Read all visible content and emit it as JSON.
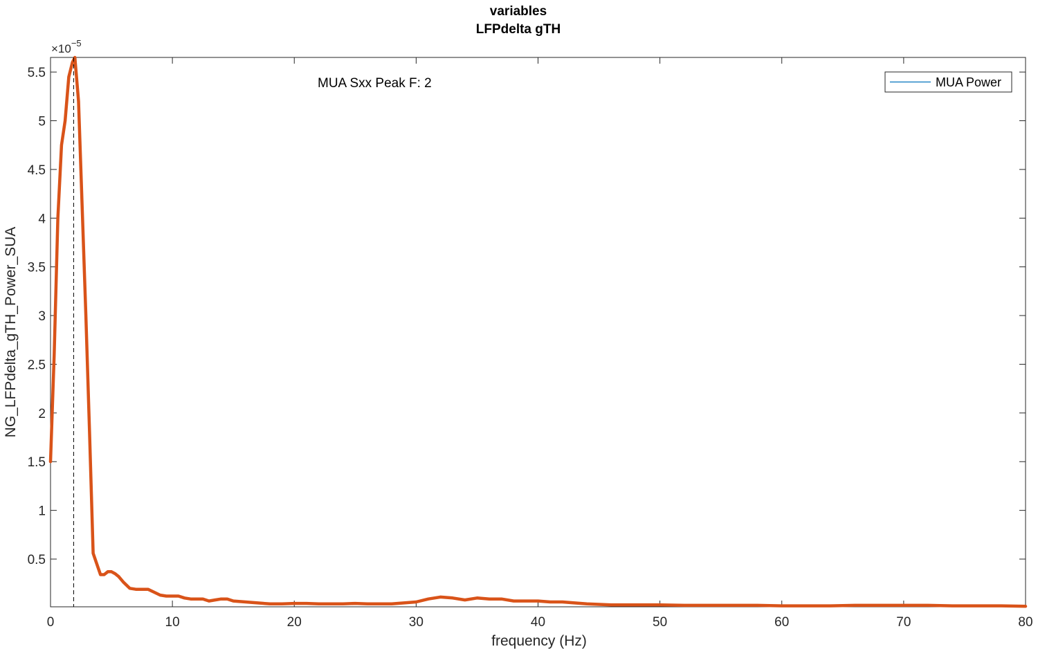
{
  "chart_data": {
    "type": "line",
    "title": [
      "variables",
      "LFPdelta gTH"
    ],
    "xlabel": "frequency (Hz)",
    "ylabel": "NG_LFPdelta_gTH_Power_SUA",
    "exponent_label": "×10",
    "exponent_power": "−5",
    "xlim": [
      0,
      80
    ],
    "ylim": [
      0.01,
      5.65
    ],
    "xticks": [
      0,
      10,
      20,
      30,
      40,
      50,
      60,
      70,
      80
    ],
    "xtick_labels": [
      "0",
      "10",
      "20",
      "30",
      "40",
      "50",
      "60",
      "70",
      "80"
    ],
    "yticks": [
      0.5,
      1,
      1.5,
      2,
      2.5,
      3,
      3.5,
      4,
      4.5,
      5,
      5.5
    ],
    "ytick_labels": [
      "0.5",
      "1",
      "1.5",
      "2",
      "2.5",
      "3",
      "3.5",
      "4",
      "4.5",
      "5",
      "5.5"
    ],
    "grid": false,
    "legend": {
      "position": "top-right",
      "entries": [
        "MUA Power"
      ]
    },
    "annotation": "MUA Sxx Peak F: 2",
    "peak_line_x": 1.9,
    "colors": {
      "visible_series": "#D95319",
      "legend_series": "#0072BD",
      "axes": "#262626"
    },
    "series": [
      {
        "name": "MUA Power",
        "x": [
          0,
          0.3,
          0.6,
          0.9,
          1.2,
          1.5,
          1.8,
          2.0,
          2.3,
          2.6,
          2.9,
          3.2,
          3.5,
          3.8,
          4.1,
          4.4,
          4.7,
          5.0,
          5.3,
          5.6,
          6.0,
          6.5,
          7.0,
          7.5,
          8.0,
          8.5,
          9.0,
          9.5,
          10,
          10.5,
          11,
          11.5,
          12,
          12.5,
          13,
          13.5,
          14,
          14.5,
          15,
          16,
          17,
          18,
          19,
          20,
          21,
          22,
          23,
          24,
          25,
          26,
          27,
          28,
          29,
          30,
          31,
          32,
          33,
          34,
          35,
          36,
          37,
          38,
          39,
          40,
          41,
          42,
          43,
          44,
          45,
          46,
          47,
          48,
          49,
          50,
          52,
          54,
          56,
          58,
          60,
          62,
          64,
          66,
          68,
          70,
          72,
          74,
          76,
          78,
          80
        ],
        "y": [
          1.5,
          2.6,
          4.0,
          4.75,
          5.0,
          5.45,
          5.6,
          5.65,
          5.2,
          4.1,
          3.0,
          1.8,
          0.56,
          0.45,
          0.34,
          0.34,
          0.37,
          0.37,
          0.35,
          0.32,
          0.26,
          0.2,
          0.19,
          0.19,
          0.19,
          0.16,
          0.13,
          0.12,
          0.12,
          0.12,
          0.1,
          0.09,
          0.09,
          0.09,
          0.07,
          0.08,
          0.09,
          0.09,
          0.07,
          0.06,
          0.05,
          0.04,
          0.04,
          0.045,
          0.045,
          0.04,
          0.04,
          0.04,
          0.045,
          0.04,
          0.04,
          0.04,
          0.05,
          0.06,
          0.09,
          0.11,
          0.1,
          0.08,
          0.1,
          0.09,
          0.09,
          0.07,
          0.07,
          0.07,
          0.06,
          0.06,
          0.05,
          0.04,
          0.035,
          0.03,
          0.03,
          0.03,
          0.03,
          0.03,
          0.025,
          0.025,
          0.025,
          0.025,
          0.02,
          0.02,
          0.02,
          0.025,
          0.025,
          0.025,
          0.025,
          0.02,
          0.02,
          0.02,
          0.015
        ]
      }
    ]
  }
}
